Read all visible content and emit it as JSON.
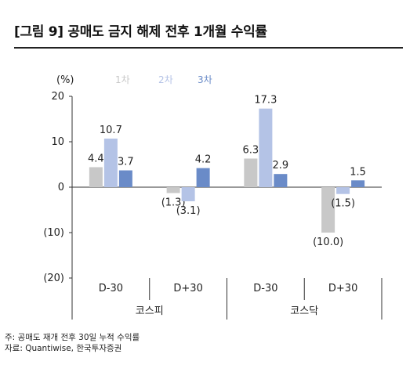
{
  "title": "[그림 9] 공매도 금지 해제 전후 1개월 수익률",
  "chart_data": {
    "type": "bar",
    "unit_label": "(%)",
    "ylim": [
      -20,
      20
    ],
    "yticks": [
      20,
      10,
      0,
      -10,
      -20
    ],
    "ytick_labels": [
      "20",
      "10",
      "0",
      "(10)",
      "(20)"
    ],
    "categories": [
      "D-30",
      "D+30",
      "D-30",
      "D+30"
    ],
    "groups": [
      {
        "label": "코스피",
        "categories": [
          "D-30",
          "D+30"
        ]
      },
      {
        "label": "코스닥",
        "categories": [
          "D-30",
          "D+30"
        ]
      }
    ],
    "series": [
      {
        "name": "1차",
        "color": "#c8c8c8",
        "values": [
          4.4,
          -1.3,
          6.3,
          -10.0
        ],
        "labels": [
          "4.4",
          "(1.3)",
          "6.3",
          "(10.0)"
        ]
      },
      {
        "name": "2차",
        "color": "#b4c3e6",
        "values": [
          10.7,
          -3.1,
          17.3,
          -1.5
        ],
        "labels": [
          "10.7",
          "(3.1)",
          "17.3",
          "(1.5)"
        ]
      },
      {
        "name": "3차",
        "color": "#6a8bc8",
        "values": [
          3.7,
          4.2,
          2.9,
          1.5
        ],
        "labels": [
          "3.7",
          "4.2",
          "2.9",
          "1.5"
        ]
      }
    ],
    "legend_position": "top-left"
  },
  "notes": [
    "주: 공매도 재개 전후 30일 누적 수익률",
    "자료: Quantiwise, 한국투자증권"
  ]
}
